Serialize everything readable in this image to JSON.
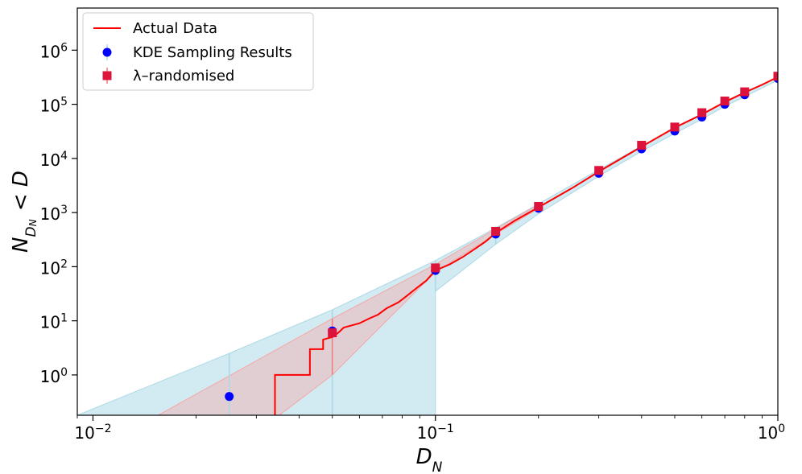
{
  "chart_data": {
    "type": "scatter",
    "x_scale": "log",
    "y_scale": "log",
    "xlim": [
      0.009,
      1.0
    ],
    "ylim": [
      0.18,
      6000000
    ],
    "xlabel": "D_N",
    "ylabel": "N_{D_N} < D",
    "x_ticks": [
      {
        "value": 0.01,
        "base": "10",
        "exp": "−2"
      },
      {
        "value": 0.1,
        "base": "10",
        "exp": "−1"
      },
      {
        "value": 1.0,
        "base": "10",
        "exp": "0"
      }
    ],
    "y_ticks": [
      {
        "value": 1,
        "base": "10",
        "exp": "0"
      },
      {
        "value": 10,
        "base": "10",
        "exp": "1"
      },
      {
        "value": 100,
        "base": "10",
        "exp": "2"
      },
      {
        "value": 1000,
        "base": "10",
        "exp": "3"
      },
      {
        "value": 10000,
        "base": "10",
        "exp": "4"
      },
      {
        "value": 100000,
        "base": "10",
        "exp": "5"
      },
      {
        "value": 1000000,
        "base": "10",
        "exp": "6"
      }
    ],
    "legend": {
      "position": "top-left",
      "entries": [
        "Actual Data",
        "KDE Sampling Results",
        "λ–randomised"
      ]
    },
    "series": [
      {
        "name": "Actual Data",
        "kind": "step-line",
        "color": "#ff0000",
        "points": [
          [
            0.034,
            0.18
          ],
          [
            0.034,
            1
          ],
          [
            0.043,
            1
          ],
          [
            0.043,
            3
          ],
          [
            0.047,
            3
          ],
          [
            0.047,
            4.5
          ],
          [
            0.05,
            5
          ],
          [
            0.052,
            6
          ],
          [
            0.054,
            7.5
          ],
          [
            0.056,
            8
          ],
          [
            0.06,
            9
          ],
          [
            0.064,
            11
          ],
          [
            0.068,
            13
          ],
          [
            0.072,
            17
          ],
          [
            0.078,
            22
          ],
          [
            0.082,
            28
          ],
          [
            0.088,
            40
          ],
          [
            0.094,
            55
          ],
          [
            0.1,
            85
          ],
          [
            0.11,
            110
          ],
          [
            0.12,
            150
          ],
          [
            0.13,
            210
          ],
          [
            0.14,
            290
          ],
          [
            0.15,
            420
          ],
          [
            0.17,
            700
          ],
          [
            0.2,
            1250
          ],
          [
            0.25,
            2800
          ],
          [
            0.3,
            5700
          ],
          [
            0.4,
            16500
          ],
          [
            0.5,
            37000
          ],
          [
            0.6,
            65000
          ],
          [
            0.7,
            110000
          ],
          [
            0.8,
            165000
          ],
          [
            0.9,
            230000
          ],
          [
            1.0,
            320000
          ]
        ]
      },
      {
        "name": "KDE Sampling Results",
        "kind": "points",
        "marker": "circle",
        "color": "#0000ff",
        "errorbar_color": "#add8e6",
        "points": [
          {
            "x": 0.025,
            "y": 0.4,
            "lo": 0.18,
            "hi": 2.5
          },
          {
            "x": 0.05,
            "y": 6.5,
            "lo": 0.18,
            "hi": 16
          },
          {
            "x": 0.1,
            "y": 85,
            "lo": 35,
            "hi": 130
          },
          {
            "x": 0.15,
            "y": 400,
            "lo": 260,
            "hi": 520
          },
          {
            "x": 0.2,
            "y": 1200,
            "lo": 950,
            "hi": 1450
          },
          {
            "x": 0.3,
            "y": 5300,
            "lo": 4700,
            "hi": 6200
          },
          {
            "x": 0.4,
            "y": 15000,
            "lo": 13500,
            "hi": 17000
          },
          {
            "x": 0.5,
            "y": 32000,
            "lo": 29000,
            "hi": 36000
          },
          {
            "x": 0.6,
            "y": 58000,
            "lo": 53000,
            "hi": 64000
          },
          {
            "x": 0.7,
            "y": 100000,
            "lo": 92000,
            "hi": 108000
          },
          {
            "x": 0.8,
            "y": 150000,
            "lo": 138000,
            "hi": 162000
          },
          {
            "x": 1.0,
            "y": 300000,
            "lo": 280000,
            "hi": 320000
          }
        ]
      },
      {
        "name": "λ–randomised",
        "kind": "points",
        "marker": "square",
        "color": "#dc143c",
        "errorbar_color": "#f08080",
        "points": [
          {
            "x": 0.05,
            "y": 6,
            "lo": 1.0,
            "hi": 11
          },
          {
            "x": 0.1,
            "y": 95,
            "lo": 80,
            "hi": 110
          },
          {
            "x": 0.15,
            "y": 450,
            "lo": 400,
            "hi": 500
          },
          {
            "x": 0.2,
            "y": 1300,
            "lo": 1200,
            "hi": 1400
          },
          {
            "x": 0.3,
            "y": 6000,
            "lo": 5600,
            "hi": 6400
          },
          {
            "x": 0.4,
            "y": 17500,
            "lo": 16500,
            "hi": 18500
          },
          {
            "x": 0.5,
            "y": 38000,
            "lo": 36000,
            "hi": 40000
          },
          {
            "x": 0.6,
            "y": 70000,
            "lo": 66000,
            "hi": 74000
          },
          {
            "x": 0.7,
            "y": 115000,
            "lo": 110000,
            "hi": 120000
          },
          {
            "x": 0.8,
            "y": 170000,
            "lo": 162000,
            "hi": 178000
          },
          {
            "x": 1.0,
            "y": 330000,
            "lo": 318000,
            "hi": 342000
          }
        ]
      }
    ],
    "bands": [
      {
        "name": "KDE Sampling Results band",
        "color": "#add8e6",
        "opacity": 0.55,
        "upper": [
          [
            0.009,
            0.18
          ],
          [
            0.025,
            2.5
          ],
          [
            0.05,
            16
          ],
          [
            0.1,
            130
          ],
          [
            0.15,
            520
          ],
          [
            0.2,
            1450
          ],
          [
            0.3,
            6200
          ],
          [
            0.4,
            17000
          ],
          [
            0.5,
            36000
          ],
          [
            0.6,
            64000
          ],
          [
            0.7,
            108000
          ],
          [
            0.8,
            162000
          ],
          [
            1.0,
            320000
          ]
        ],
        "lower": [
          [
            0.1,
            0.18
          ],
          [
            0.1,
            35
          ],
          [
            0.15,
            260
          ],
          [
            0.2,
            950
          ],
          [
            0.3,
            4700
          ],
          [
            0.4,
            13500
          ],
          [
            0.5,
            29000
          ],
          [
            0.6,
            53000
          ],
          [
            0.7,
            92000
          ],
          [
            0.8,
            138000
          ],
          [
            1.0,
            280000
          ]
        ]
      },
      {
        "name": "λ–randomised band",
        "color": "#f4a6a6",
        "opacity": 0.4,
        "upper": [
          [
            0.0155,
            0.18
          ],
          [
            0.05,
            11
          ],
          [
            0.1,
            110
          ],
          [
            0.15,
            500
          ],
          [
            0.2,
            1400
          ]
        ],
        "lower": [
          [
            0.035,
            0.18
          ],
          [
            0.05,
            1.0
          ],
          [
            0.1,
            80
          ],
          [
            0.15,
            400
          ],
          [
            0.2,
            1200
          ]
        ]
      }
    ]
  }
}
